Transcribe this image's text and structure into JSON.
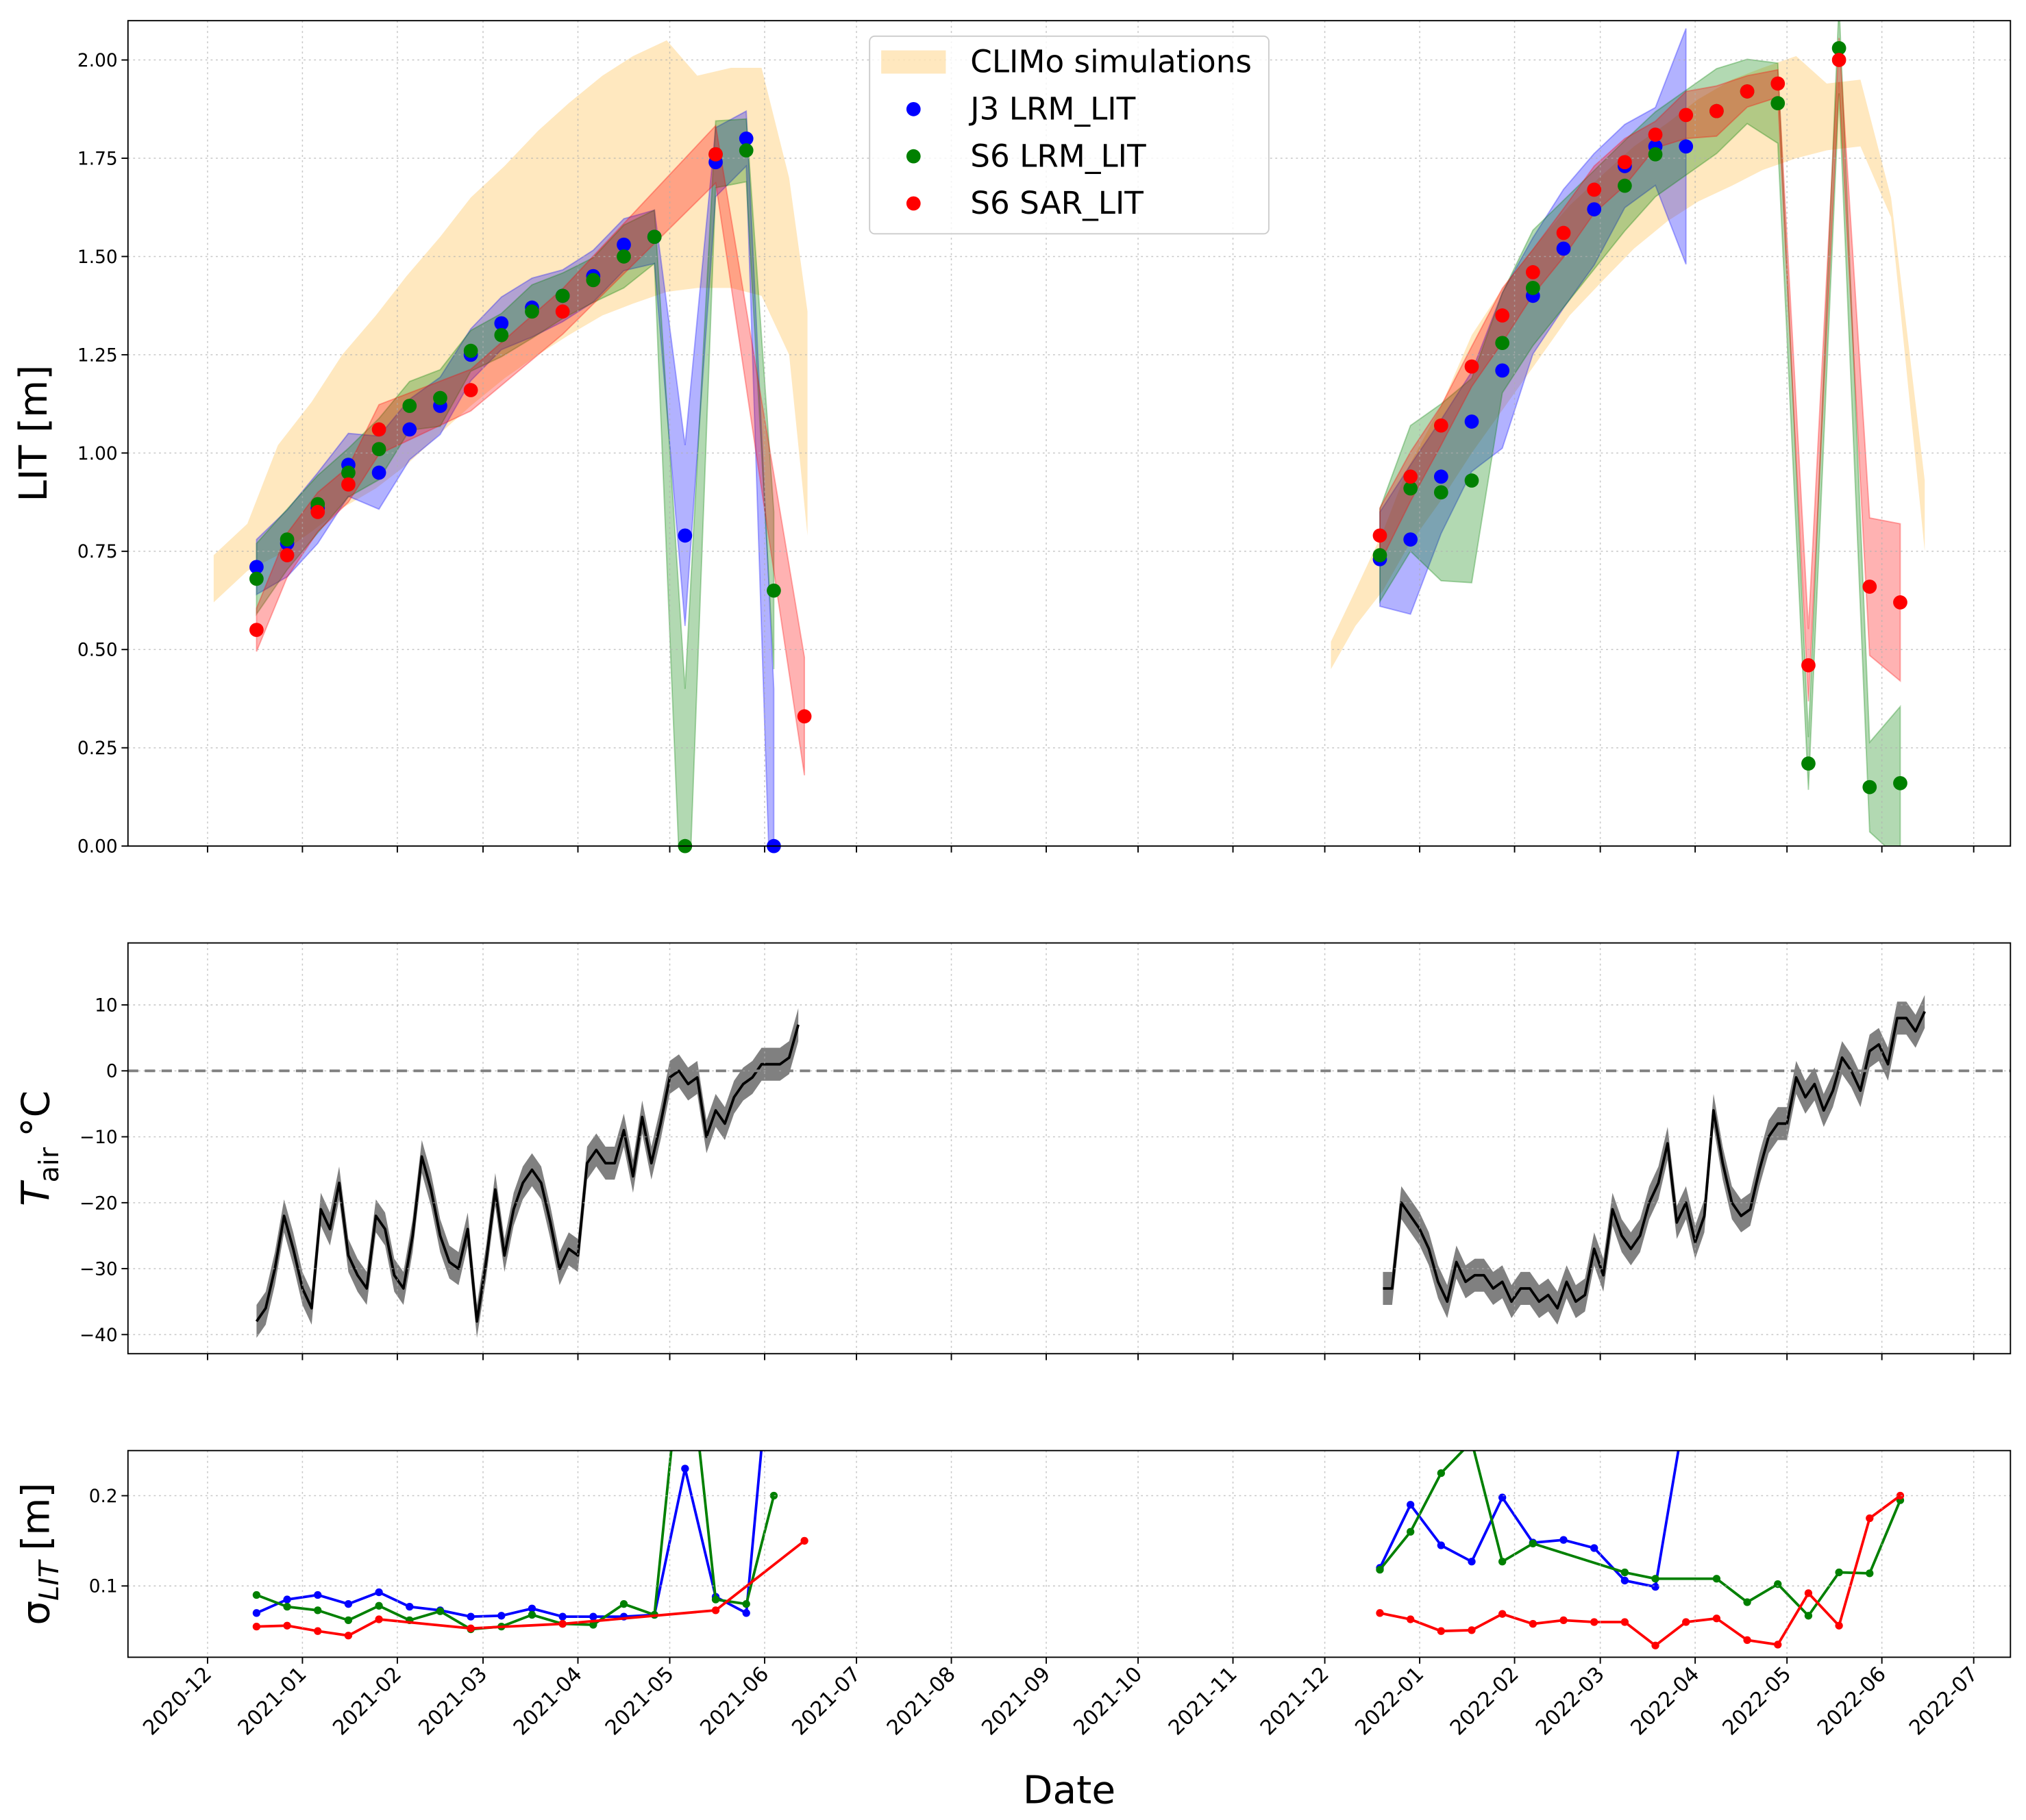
{
  "chart_data": [
    {
      "type": "scatter",
      "ylabel": "LIT [m]",
      "xlim": [
        "2020-11-05",
        "2022-07-13"
      ],
      "xticks": [
        "2020-12",
        "2021-01",
        "2021-02",
        "2021-03",
        "2021-04",
        "2021-05",
        "2021-06",
        "2021-07",
        "2021-08",
        "2021-09",
        "2021-10",
        "2021-11",
        "2021-12",
        "2022-01",
        "2022-02",
        "2022-03",
        "2022-04",
        "2022-05",
        "2022-06",
        "2022-07"
      ],
      "ylim": [
        0,
        2.1
      ],
      "yticks": [
        {
          "value": 0,
          "label": "0.00"
        },
        0.25,
        {
          "value": 0.5,
          "label": "0.50"
        },
        0.75,
        {
          "value": 1,
          "label": "1.00"
        },
        1.25,
        {
          "value": 1.5,
          "label": "1.50"
        },
        1.75,
        {
          "value": 2,
          "label": "2.00"
        }
      ],
      "grid": true,
      "legend": "upper center",
      "climo": {
        "name": "CLIMo simulations",
        "color": "#ffa500",
        "x": [
          "2020-12-03",
          "2020-12-14",
          "2020-12-24",
          "2021-01-04",
          "2021-01-14",
          "2021-01-25",
          "2021-02-04",
          "2021-02-15",
          "2021-02-25",
          "2021-03-08",
          "2021-03-19",
          "2021-03-29",
          "2021-04-09",
          "2021-04-19",
          "2021-04-30",
          "2021-05-10",
          "2021-05-21",
          "2021-05-31",
          "2021-06-09",
          "2021-06-15",
          "2021-12-03",
          "2021-12-11",
          "2021-12-20",
          "2021-12-28",
          "2022-01-08",
          "2022-01-18",
          "2022-01-29",
          "2022-02-09",
          "2022-02-19",
          "2022-03-02",
          "2022-03-12",
          "2022-03-23",
          "2022-04-02",
          "2022-04-13",
          "2022-04-23",
          "2022-05-04",
          "2022-05-14",
          "2022-05-25",
          "2022-06-04",
          "2022-06-15"
        ],
        "lower": [
          0.62,
          0.7,
          0.74,
          0.8,
          0.86,
          0.91,
          0.97,
          1.05,
          1.12,
          1.19,
          1.25,
          1.3,
          1.35,
          1.38,
          1.41,
          1.42,
          1.42,
          1.4,
          1.25,
          0.79,
          0.45,
          0.56,
          0.65,
          0.76,
          0.88,
          1.0,
          1.12,
          1.24,
          1.35,
          1.44,
          1.52,
          1.59,
          1.64,
          1.68,
          1.72,
          1.75,
          1.77,
          1.78,
          1.6,
          0.75
        ],
        "upper": [
          0.74,
          0.82,
          1.02,
          1.13,
          1.25,
          1.35,
          1.45,
          1.55,
          1.65,
          1.73,
          1.82,
          1.89,
          1.96,
          2.01,
          2.05,
          1.96,
          1.98,
          1.98,
          1.7,
          1.36,
          0.52,
          0.65,
          0.8,
          0.96,
          1.12,
          1.3,
          1.43,
          1.54,
          1.63,
          1.71,
          1.78,
          1.84,
          1.9,
          1.95,
          1.98,
          2.01,
          1.94,
          1.95,
          1.65,
          0.93
        ]
      },
      "series": [
        {
          "name": "J3 LRM_LIT",
          "color": "#0000ff",
          "x": [
            "2020-12-17",
            "2020-12-27",
            "2021-01-06",
            "2021-01-16",
            "2021-01-26",
            "2021-02-05",
            "2021-02-15",
            "2021-02-25",
            "2021-03-07",
            "2021-03-17",
            "2021-03-27",
            "2021-04-06",
            "2021-04-16",
            "2021-04-26",
            "2021-05-06",
            "2021-05-16",
            "2021-05-26",
            "2021-06-04",
            "2021-12-19",
            "2021-12-29",
            "2022-01-08",
            "2022-01-18",
            "2022-01-28",
            "2022-02-07",
            "2022-02-17",
            "2022-02-27",
            "2022-03-09",
            "2022-03-19",
            "2022-03-29"
          ],
          "values": [
            0.71,
            0.77,
            0.86,
            0.97,
            0.95,
            1.06,
            1.12,
            1.25,
            1.33,
            1.37,
            1.4,
            1.45,
            1.53,
            1.55,
            0.79,
            1.74,
            1.8,
            0.0,
            0.73,
            0.78,
            0.94,
            1.08,
            1.21,
            1.4,
            1.52,
            1.62,
            1.73,
            1.78,
            1.78
          ]
        },
        {
          "name": "S6 LRM_LIT",
          "color": "#008000",
          "x": [
            "2020-12-17",
            "2020-12-27",
            "2021-01-06",
            "2021-01-16",
            "2021-01-26",
            "2021-02-05",
            "2021-02-15",
            "2021-02-25",
            "2021-03-07",
            "2021-03-17",
            "2021-03-27",
            "2021-04-06",
            "2021-04-16",
            "2021-04-26",
            "2021-05-06",
            "2021-05-16",
            "2021-05-26",
            "2021-06-04",
            "2021-12-19",
            "2021-12-29",
            "2022-01-08",
            "2022-01-18",
            "2022-01-28",
            "2022-02-07",
            "2022-03-09",
            "2022-03-19",
            "2022-04-08",
            "2022-04-18",
            "2022-04-28",
            "2022-05-08",
            "2022-05-18",
            "2022-05-28",
            "2022-06-07"
          ],
          "values": [
            0.68,
            0.78,
            0.87,
            0.95,
            1.01,
            1.12,
            1.14,
            1.26,
            1.3,
            1.36,
            1.4,
            1.44,
            1.5,
            1.55,
            0.0,
            1.76,
            1.77,
            0.65,
            0.74,
            0.91,
            0.9,
            0.93,
            1.28,
            1.42,
            1.68,
            1.76,
            1.87,
            1.92,
            1.89,
            0.21,
            2.03,
            0.15,
            0.16
          ]
        },
        {
          "name": "S6 SAR_LIT",
          "color": "#ff0000",
          "x": [
            "2020-12-17",
            "2020-12-27",
            "2021-01-06",
            "2021-01-16",
            "2021-01-26",
            "2021-02-25",
            "2021-03-27",
            "2021-05-16",
            "2021-06-14",
            "2021-12-19",
            "2021-12-29",
            "2022-01-08",
            "2022-01-18",
            "2022-01-28",
            "2022-02-07",
            "2022-02-17",
            "2022-02-27",
            "2022-03-09",
            "2022-03-19",
            "2022-03-29",
            "2022-04-08",
            "2022-04-18",
            "2022-04-28",
            "2022-05-08",
            "2022-05-18",
            "2022-05-28",
            "2022-06-07"
          ],
          "values": [
            0.55,
            0.74,
            0.85,
            0.92,
            1.06,
            1.16,
            1.36,
            1.76,
            0.33,
            0.79,
            0.94,
            1.07,
            1.22,
            1.35,
            1.46,
            1.56,
            1.67,
            1.74,
            1.81,
            1.86,
            1.87,
            1.92,
            1.94,
            0.46,
            2.0,
            0.66,
            0.62
          ]
        }
      ]
    },
    {
      "type": "line",
      "ylabel": {
        "symbol": "T",
        "subscript": "air",
        "unit": "°C"
      },
      "xlim": [
        "2020-11-05",
        "2022-07-13"
      ],
      "xticks": [
        "2020-12",
        "2021-01",
        "2021-02",
        "2021-03",
        "2021-04",
        "2021-05",
        "2021-06",
        "2021-07",
        "2021-08",
        "2021-09",
        "2021-10",
        "2021-11",
        "2021-12",
        "2022-01",
        "2022-02",
        "2022-03",
        "2022-04",
        "2022-05",
        "2022-06",
        "2022-07"
      ],
      "ylim": [
        -42.9,
        19.4
      ],
      "yticks": [
        {
          "value": -40,
          "label": "−40"
        },
        {
          "value": -30,
          "label": "−30"
        },
        {
          "value": -20,
          "label": "−20"
        },
        {
          "value": -10,
          "label": "−10"
        },
        0,
        10
      ],
      "grid": true,
      "reference_line": 0,
      "uncertainty": 2.5,
      "band_color": "#808080",
      "series": [
        {
          "color": "#000000",
          "x": [
            "2020-12-17",
            "2020-12-20",
            "2020-12-23",
            "2020-12-26",
            "2020-12-29",
            "2021-01-01",
            "2021-01-04",
            "2021-01-07",
            "2021-01-10",
            "2021-01-13",
            "2021-01-16",
            "2021-01-19",
            "2021-01-22",
            "2021-01-25",
            "2021-01-28",
            "2021-01-31",
            "2021-02-03",
            "2021-02-06",
            "2021-02-09",
            "2021-02-12",
            "2021-02-15",
            "2021-02-18",
            "2021-02-21",
            "2021-02-24",
            "2021-02-27",
            "2021-03-02",
            "2021-03-05",
            "2021-03-08",
            "2021-03-11",
            "2021-03-14",
            "2021-03-17",
            "2021-03-20",
            "2021-03-23",
            "2021-03-26",
            "2021-03-29",
            "2021-04-01",
            "2021-04-04",
            "2021-04-07",
            "2021-04-10",
            "2021-04-13",
            "2021-04-16",
            "2021-04-19",
            "2021-04-22",
            "2021-04-25",
            "2021-04-28",
            "2021-05-01",
            "2021-05-04",
            "2021-05-07",
            "2021-05-10",
            "2021-05-13",
            "2021-05-16",
            "2021-05-19",
            "2021-05-22",
            "2021-05-25",
            "2021-05-28",
            "2021-05-31",
            "2021-06-03",
            "2021-06-06",
            "2021-06-09",
            "2021-06-12",
            "2021-12-20",
            "2021-12-23",
            "2021-12-26",
            "2021-12-29",
            "2022-01-01",
            "2022-01-04",
            "2022-01-07",
            "2022-01-10",
            "2022-01-13",
            "2022-01-16",
            "2022-01-19",
            "2022-01-22",
            "2022-01-25",
            "2022-01-28",
            "2022-01-31",
            "2022-02-03",
            "2022-02-06",
            "2022-02-09",
            "2022-02-12",
            "2022-02-15",
            "2022-02-18",
            "2022-02-21",
            "2022-02-24",
            "2022-02-27",
            "2022-03-02",
            "2022-03-05",
            "2022-03-08",
            "2022-03-11",
            "2022-03-14",
            "2022-03-17",
            "2022-03-20",
            "2022-03-23",
            "2022-03-26",
            "2022-03-29",
            "2022-04-01",
            "2022-04-04",
            "2022-04-07",
            "2022-04-10",
            "2022-04-13",
            "2022-04-16",
            "2022-04-19",
            "2022-04-22",
            "2022-04-25",
            "2022-04-28",
            "2022-05-01",
            "2022-05-04",
            "2022-05-07",
            "2022-05-10",
            "2022-05-13",
            "2022-05-16",
            "2022-05-19",
            "2022-05-22",
            "2022-05-25",
            "2022-05-28",
            "2022-05-31",
            "2022-06-03",
            "2022-06-06",
            "2022-06-09",
            "2022-06-12",
            "2022-06-15"
          ],
          "values": [
            -38,
            -36,
            -30,
            -22,
            -27,
            -33,
            -36,
            -21,
            -24,
            -17,
            -28,
            -31,
            -33,
            -22,
            -24,
            -31,
            -33,
            -25,
            -13,
            -18,
            -25,
            -29,
            -30,
            -24,
            -38,
            -29,
            -18,
            -28,
            -21,
            -17,
            -15,
            -17,
            -23,
            -30,
            -27,
            -28,
            -14,
            -12,
            -14,
            -14,
            -9,
            -16,
            -7,
            -14,
            -8,
            -1,
            0,
            -2,
            -1,
            -10,
            -6,
            -8,
            -4,
            -2,
            -1,
            1,
            1,
            1,
            2,
            7,
            -33,
            -33,
            -20,
            -22,
            -24,
            -27,
            -32,
            -35,
            -29,
            -32,
            -31,
            -31,
            -33,
            -32,
            -35,
            -33,
            -33,
            -35,
            -34,
            -36,
            -32,
            -35,
            -34,
            -27,
            -31,
            -21,
            -25,
            -27,
            -25,
            -20,
            -17,
            -11,
            -23,
            -20,
            -26,
            -22,
            -6,
            -14,
            -20,
            -22,
            -21,
            -15,
            -10,
            -8,
            -8,
            -1,
            -4,
            -2,
            -6,
            -3,
            2,
            0,
            -3,
            3,
            4,
            1,
            8,
            8,
            6,
            9
          ]
        }
      ]
    },
    {
      "type": "line",
      "ylabel": {
        "symbol": "σ",
        "subscript": "LIT",
        "unit": "[m]"
      },
      "xlabel": "Date",
      "xlim": [
        "2020-11-05",
        "2022-07-13"
      ],
      "xticks": [
        "2020-12",
        "2021-01",
        "2021-02",
        "2021-03",
        "2021-04",
        "2021-05",
        "2021-06",
        "2021-07",
        "2021-08",
        "2021-09",
        "2021-10",
        "2021-11",
        "2021-12",
        "2022-01",
        "2022-02",
        "2022-03",
        "2022-04",
        "2022-05",
        "2022-06",
        "2022-07"
      ],
      "ylim": [
        0.021,
        0.25
      ],
      "yticks": [
        0.1,
        0.2
      ],
      "grid": true,
      "marker": true,
      "series": [
        {
          "color": "#0000ff",
          "x": [
            "2020-12-17",
            "2020-12-27",
            "2021-01-06",
            "2021-01-16",
            "2021-01-26",
            "2021-02-05",
            "2021-02-15",
            "2021-02-25",
            "2021-03-07",
            "2021-03-17",
            "2021-03-27",
            "2021-04-06",
            "2021-04-16",
            "2021-04-26",
            "2021-05-06",
            "2021-05-16",
            "2021-05-26",
            "2021-06-04",
            "2021-12-19",
            "2021-12-29",
            "2022-01-08",
            "2022-01-18",
            "2022-01-28",
            "2022-02-07",
            "2022-02-17",
            "2022-02-27",
            "2022-03-09",
            "2022-03-19",
            "2022-03-29"
          ],
          "values": [
            0.07,
            0.085,
            0.09,
            0.08,
            0.093,
            0.077,
            0.073,
            0.066,
            0.067,
            0.075,
            0.066,
            0.066,
            0.066,
            0.068,
            0.23,
            0.088,
            0.07,
            0.4,
            0.12,
            0.19,
            0.145,
            0.127,
            0.198,
            0.148,
            0.151,
            0.142,
            0.106,
            0.099,
            0.3
          ]
        },
        {
          "color": "#008000",
          "x": [
            "2020-12-17",
            "2020-12-27",
            "2021-01-06",
            "2021-01-16",
            "2021-01-26",
            "2021-02-05",
            "2021-02-15",
            "2021-02-25",
            "2021-03-07",
            "2021-03-17",
            "2021-03-27",
            "2021-04-06",
            "2021-04-16",
            "2021-04-26",
            "2021-05-06",
            "2021-05-16",
            "2021-05-26",
            "2021-06-04",
            "2021-12-19",
            "2021-12-29",
            "2022-01-08",
            "2022-01-18",
            "2022-01-28",
            "2022-02-07",
            "2022-03-09",
            "2022-03-19",
            "2022-04-08",
            "2022-04-18",
            "2022-04-28",
            "2022-05-08",
            "2022-05-18",
            "2022-05-28",
            "2022-06-07"
          ],
          "values": [
            0.09,
            0.077,
            0.073,
            0.062,
            0.078,
            0.062,
            0.072,
            0.052,
            0.055,
            0.068,
            0.058,
            0.057,
            0.08,
            0.068,
            0.4,
            0.085,
            0.08,
            0.2,
            0.118,
            0.16,
            0.225,
            0.26,
            0.127,
            0.147,
            0.115,
            0.108,
            0.108,
            0.082,
            0.102,
            0.067,
            0.115,
            0.114,
            0.195
          ]
        },
        {
          "color": "#ff0000",
          "x": [
            "2020-12-17",
            "2020-12-27",
            "2021-01-06",
            "2021-01-16",
            "2021-01-26",
            "2021-02-25",
            "2021-03-27",
            "2021-05-16",
            "2021-06-14",
            "2021-12-19",
            "2021-12-29",
            "2022-01-08",
            "2022-01-18",
            "2022-01-28",
            "2022-02-07",
            "2022-02-17",
            "2022-02-27",
            "2022-03-09",
            "2022-03-19",
            "2022-03-29",
            "2022-04-08",
            "2022-04-18",
            "2022-04-28",
            "2022-05-08",
            "2022-05-18",
            "2022-05-28",
            "2022-06-07"
          ],
          "values": [
            0.055,
            0.056,
            0.05,
            0.045,
            0.063,
            0.053,
            0.058,
            0.073,
            0.15,
            0.07,
            0.063,
            0.05,
            0.051,
            0.069,
            0.058,
            0.062,
            0.06,
            0.06,
            0.034,
            0.06,
            0.064,
            0.04,
            0.035,
            0.092,
            0.056,
            0.175,
            0.2
          ]
        }
      ]
    }
  ]
}
